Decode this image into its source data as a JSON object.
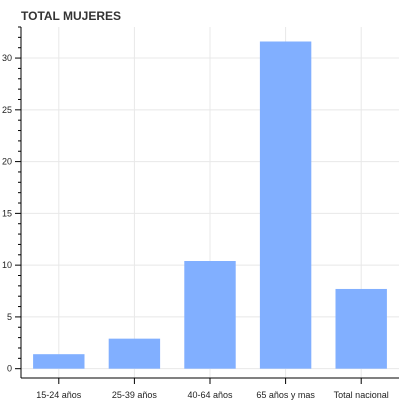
{
  "chart_data": {
    "type": "bar",
    "title": "TOTAL MUJERES",
    "categories": [
      "15-24 años",
      "25-39 años",
      "40-64 años",
      "65 años y mas",
      "Total nacional"
    ],
    "values": [
      1.4,
      2.9,
      10.4,
      31.6,
      7.7
    ],
    "ylim": [
      -0.9,
      33.0
    ],
    "yticks": [
      0,
      5,
      10,
      15,
      20,
      25,
      30
    ],
    "y_minor_step": 1,
    "grid": true,
    "legend": "none",
    "bar_color": "#81afff",
    "xlabel": "",
    "ylabel": ""
  }
}
